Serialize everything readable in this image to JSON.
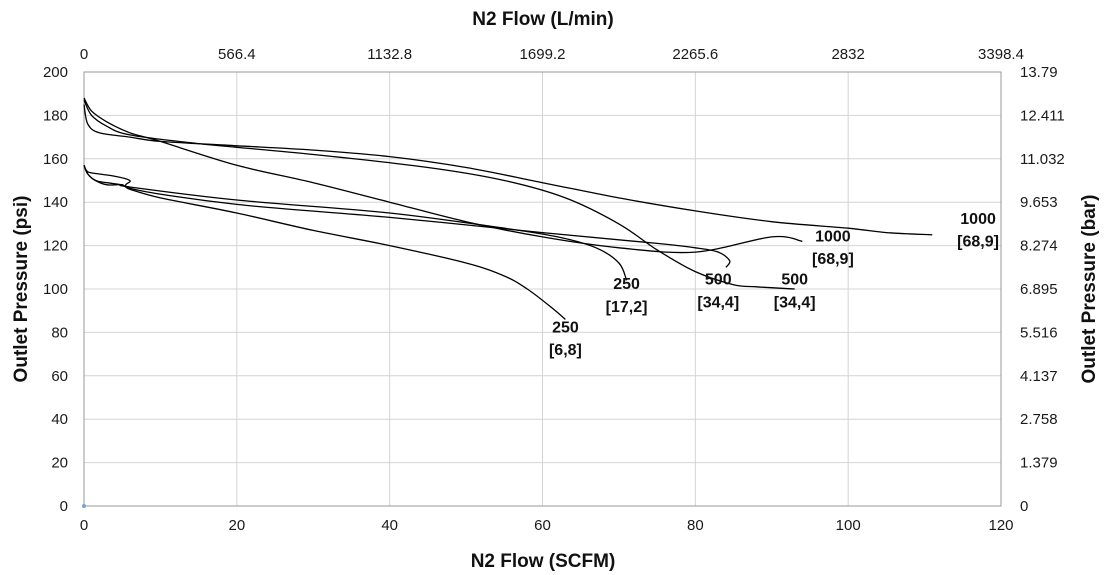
{
  "chart_data": {
    "type": "line",
    "title": "",
    "xlabel": "N2 Flow (SCFM)",
    "x2label": "N2 Flow (L/min)",
    "ylabel": "Outlet Pressure (psi)",
    "y2label": "Outlet Pressure (bar)",
    "xlim": [
      0,
      120
    ],
    "ylim": [
      0,
      200
    ],
    "x_ticks": [
      "0",
      "20",
      "40",
      "60",
      "80",
      "100",
      "120"
    ],
    "x2_ticks": [
      "0",
      "566.4",
      "1132.8",
      "1699.2",
      "2265.6",
      "2832",
      "3398.4"
    ],
    "y_ticks": [
      "0",
      "20",
      "40",
      "60",
      "80",
      "100",
      "120",
      "140",
      "160",
      "180",
      "200"
    ],
    "y2_ticks": [
      "0",
      "1.379",
      "2.758",
      "4.137",
      "5.516",
      "6.895",
      "8.274",
      "9.653",
      "11.032",
      "12.411",
      "13.79"
    ],
    "grid": true,
    "legend": "none",
    "series": [
      {
        "label_lines": [
          "250",
          "[6,8]"
        ],
        "points": [
          [
            0,
            157
          ],
          [
            0.5,
            153
          ],
          [
            1.5,
            150
          ],
          [
            3,
            148
          ],
          [
            5,
            148
          ],
          [
            6,
            146
          ],
          [
            10,
            142
          ],
          [
            20,
            135
          ],
          [
            30,
            127
          ],
          [
            40,
            120
          ],
          [
            50,
            112
          ],
          [
            55,
            106
          ],
          [
            58,
            100
          ],
          [
            61,
            92
          ],
          [
            63,
            86
          ]
        ]
      },
      {
        "label_lines": [
          "250",
          "[17,2]"
        ],
        "points": [
          [
            0,
            157
          ],
          [
            0.5,
            153
          ],
          [
            1.5,
            150
          ],
          [
            3,
            149
          ],
          [
            5,
            148
          ],
          [
            6,
            147
          ],
          [
            20,
            141
          ],
          [
            40,
            135
          ],
          [
            55,
            128
          ],
          [
            62,
            124
          ],
          [
            67,
            119
          ],
          [
            70,
            112
          ],
          [
            71,
            104
          ]
        ]
      },
      {
        "label_lines": [
          "500",
          "[34,4]"
        ],
        "points": [
          [
            0,
            157
          ],
          [
            0.5,
            154
          ],
          [
            2,
            153
          ],
          [
            4,
            152
          ],
          [
            6,
            150
          ],
          [
            6.5,
            146
          ],
          [
            20,
            139
          ],
          [
            40,
            133
          ],
          [
            60,
            126
          ],
          [
            75,
            121
          ],
          [
            80,
            119
          ],
          [
            83,
            117
          ],
          [
            84.5,
            113
          ],
          [
            84,
            110
          ]
        ]
      },
      {
        "label_lines": [
          "500",
          "[34,4]"
        ],
        "points": [
          [
            0,
            187
          ],
          [
            1,
            180
          ],
          [
            3,
            175
          ],
          [
            6,
            171
          ],
          [
            15,
            167
          ],
          [
            30,
            162
          ],
          [
            45,
            156
          ],
          [
            55,
            150
          ],
          [
            63,
            142
          ],
          [
            70,
            130
          ],
          [
            75,
            118
          ],
          [
            80,
            108
          ],
          [
            85,
            102
          ],
          [
            88,
            101
          ],
          [
            93,
            100
          ]
        ]
      },
      {
        "label_lines": [
          "1000",
          "[68,9]"
        ],
        "points": [
          [
            0,
            188
          ],
          [
            1,
            182
          ],
          [
            3,
            177
          ],
          [
            6,
            172
          ],
          [
            10,
            168
          ],
          [
            20,
            157
          ],
          [
            30,
            149
          ],
          [
            40,
            140
          ],
          [
            50,
            131
          ],
          [
            60,
            124
          ],
          [
            70,
            119
          ],
          [
            80,
            117
          ],
          [
            90,
            124
          ],
          [
            94,
            122
          ]
        ]
      },
      {
        "label_lines": [
          "1000",
          "[68,9]"
        ],
        "points": [
          [
            0,
            185
          ],
          [
            0.5,
            176
          ],
          [
            2,
            172
          ],
          [
            6,
            170
          ],
          [
            10,
            168
          ],
          [
            20,
            166
          ],
          [
            30,
            164
          ],
          [
            40,
            161
          ],
          [
            50,
            156
          ],
          [
            60,
            149
          ],
          [
            70,
            142
          ],
          [
            80,
            136
          ],
          [
            90,
            131
          ],
          [
            100,
            128
          ],
          [
            105,
            126
          ],
          [
            111,
            125
          ]
        ]
      }
    ]
  }
}
